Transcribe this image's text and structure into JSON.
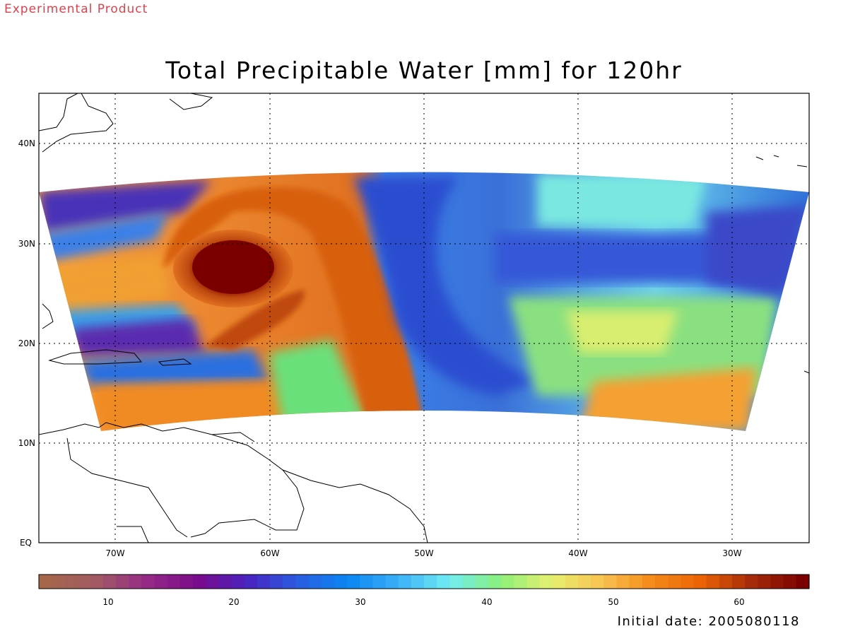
{
  "banner": "Experimental Product",
  "title": "Total Precipitable Water [mm] for 120hr",
  "initial_date": "Initial date: 2005080118",
  "lat_labels": [
    "40N",
    "30N",
    "20N",
    "10N",
    "EQ"
  ],
  "lon_labels": [
    "70W",
    "60W",
    "50W",
    "40W",
    "30W"
  ],
  "colorbar": {
    "ticks": [
      "10",
      "20",
      "30",
      "40",
      "50",
      "60"
    ],
    "stops": [
      "#a5664a",
      "#a25a63",
      "#962a86",
      "#7a0a8a",
      "#4a22c0",
      "#2a5ee0",
      "#0a86f2",
      "#3cb0f8",
      "#70ecf2",
      "#8af07a",
      "#e6f070",
      "#f8c452",
      "#f58a1a",
      "#ea6204",
      "#a52a0a",
      "#7a0000"
    ]
  }
}
